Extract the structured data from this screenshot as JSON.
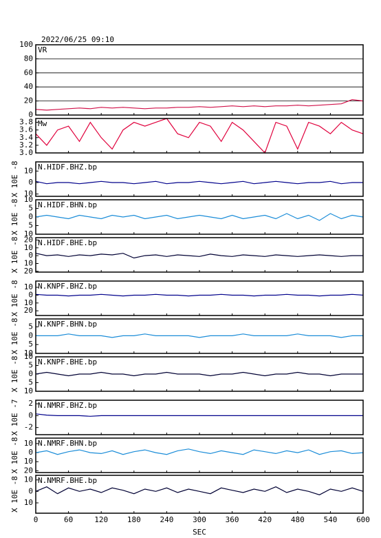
{
  "title": "2022/06/25 09:10",
  "xlabel": "SEC",
  "xlim": [
    0,
    600
  ],
  "xticks": [
    0,
    60,
    120,
    180,
    240,
    300,
    360,
    420,
    480,
    540,
    600
  ],
  "chart_data": [
    {
      "type": "line",
      "title": "VR",
      "color": "#d01048",
      "grid": true,
      "ylim": [
        0,
        100
      ],
      "yticks": [
        0,
        20,
        40,
        60,
        80,
        100
      ],
      "x": [
        0,
        20,
        40,
        60,
        80,
        100,
        120,
        140,
        160,
        180,
        200,
        220,
        240,
        260,
        280,
        300,
        320,
        340,
        360,
        380,
        400,
        420,
        440,
        460,
        480,
        500,
        520,
        540,
        560,
        580,
        600
      ],
      "values": [
        8,
        7,
        8,
        9,
        10,
        9,
        11,
        10,
        11,
        10,
        9,
        10,
        10,
        11,
        11,
        12,
        11,
        12,
        13,
        12,
        13,
        12,
        13,
        13,
        14,
        13,
        14,
        15,
        16,
        22,
        20
      ]
    },
    {
      "type": "line",
      "title": "Mw",
      "color": "#e0003c",
      "ylim": [
        3.0,
        3.9
      ],
      "yticks": [
        {
          "value": 3,
          "label": "3.0"
        },
        3.2,
        3.4,
        3.6,
        3.8
      ],
      "x": [
        0,
        20,
        40,
        60,
        80,
        100,
        120,
        140,
        160,
        180,
        200,
        220,
        240,
        260,
        280,
        300,
        320,
        340,
        360,
        380,
        400,
        420,
        440,
        460,
        480,
        500,
        520,
        540,
        560,
        580,
        600
      ],
      "values": [
        3.5,
        3.2,
        3.6,
        3.7,
        3.3,
        3.8,
        3.4,
        3.1,
        3.6,
        3.8,
        3.7,
        3.8,
        3.9,
        3.5,
        3.4,
        3.8,
        3.7,
        3.3,
        3.8,
        3.6,
        3.3,
        3.0,
        3.8,
        3.7,
        3.1,
        3.8,
        3.7,
        3.5,
        3.8,
        3.6,
        3.5
      ]
    },
    {
      "type": "line",
      "title": "N.HIDF.BHZ.bp",
      "ylabel": "X 10E -8",
      "color": "#00008b",
      "ylim": [
        -12,
        18
      ],
      "yticks": [
        10,
        0,
        {
          "value": -10,
          "label": "10"
        }
      ],
      "x": [
        0,
        20,
        40,
        60,
        80,
        100,
        120,
        140,
        160,
        180,
        200,
        220,
        240,
        260,
        280,
        300,
        320,
        340,
        360,
        380,
        400,
        420,
        440,
        460,
        480,
        500,
        520,
        540,
        560,
        580,
        600
      ],
      "values": [
        1,
        -1,
        0,
        0,
        -1,
        0,
        1,
        0,
        0,
        -1,
        0,
        1,
        -1,
        0,
        0,
        1,
        0,
        -1,
        0,
        1,
        -1,
        0,
        1,
        0,
        -1,
        0,
        0,
        1,
        -1,
        0,
        0
      ]
    },
    {
      "type": "line",
      "title": "N.HIDF.BHN.bp",
      "ylabel": "X 10E -8",
      "color": "#1a8cd8",
      "ylim": [
        -10,
        10
      ],
      "yticks": [
        10,
        5,
        0,
        {
          "value": -5,
          "label": "5"
        },
        {
          "value": -10,
          "label": "10"
        }
      ],
      "x": [
        0,
        20,
        40,
        60,
        80,
        100,
        120,
        140,
        160,
        180,
        200,
        220,
        240,
        260,
        280,
        300,
        320,
        340,
        360,
        380,
        400,
        420,
        440,
        460,
        480,
        500,
        520,
        540,
        560,
        580,
        600
      ],
      "values": [
        0,
        1,
        0,
        -1,
        1,
        0,
        -1,
        1,
        0,
        1,
        -1,
        0,
        1,
        -1,
        0,
        1,
        0,
        -1,
        1,
        -1,
        0,
        1,
        -1,
        2,
        -1,
        1,
        -2,
        2,
        -1,
        1,
        0
      ]
    },
    {
      "type": "line",
      "title": "N.HIDF.BHE.bp",
      "ylabel": "X 10E -8",
      "color": "#000033",
      "ylim": [
        -21,
        23
      ],
      "yticks": [
        20,
        10,
        0,
        {
          "value": -10,
          "label": "10"
        },
        {
          "value": -20,
          "label": "20"
        }
      ],
      "x": [
        0,
        20,
        40,
        60,
        80,
        100,
        120,
        140,
        160,
        180,
        200,
        220,
        240,
        260,
        280,
        300,
        320,
        340,
        360,
        380,
        400,
        420,
        440,
        460,
        480,
        500,
        520,
        540,
        560,
        580,
        600
      ],
      "values": [
        3,
        0,
        1,
        -1,
        1,
        0,
        2,
        1,
        3,
        -3,
        0,
        1,
        -1,
        1,
        0,
        -1,
        2,
        0,
        -1,
        1,
        0,
        -1,
        1,
        0,
        -1,
        0,
        1,
        0,
        -1,
        0,
        0
      ]
    },
    {
      "type": "line",
      "title": "N.KNPF.BHZ.bp",
      "ylabel": "X 10E -8",
      "color": "#00008b",
      "ylim": [
        -26,
        18
      ],
      "yticks": [
        10,
        0,
        {
          "value": -10,
          "label": "10"
        },
        {
          "value": -20,
          "label": "20"
        }
      ],
      "x": [
        0,
        20,
        40,
        60,
        80,
        100,
        120,
        140,
        160,
        180,
        200,
        220,
        240,
        260,
        280,
        300,
        320,
        340,
        360,
        380,
        400,
        420,
        440,
        460,
        480,
        500,
        520,
        540,
        560,
        580,
        600
      ],
      "values": [
        1,
        0,
        0,
        -1,
        0,
        0,
        1,
        0,
        -1,
        0,
        0,
        1,
        0,
        0,
        -1,
        0,
        0,
        1,
        0,
        0,
        -1,
        0,
        0,
        1,
        0,
        0,
        -1,
        0,
        0,
        1,
        0
      ]
    },
    {
      "type": "line",
      "title": "N.KNPF.BHN.bp",
      "ylabel": "X 10E -8",
      "color": "#1a8cd8",
      "ylim": [
        -10,
        9.5
      ],
      "yticks": [
        5,
        0,
        {
          "value": -5,
          "label": "5"
        },
        {
          "value": -10,
          "label": "10"
        }
      ],
      "x": [
        0,
        20,
        40,
        60,
        80,
        100,
        120,
        140,
        160,
        180,
        200,
        220,
        240,
        260,
        280,
        300,
        320,
        340,
        360,
        380,
        400,
        420,
        440,
        460,
        480,
        500,
        520,
        540,
        560,
        580,
        600
      ],
      "values": [
        0,
        0,
        0,
        1,
        0,
        0,
        0,
        -1,
        0,
        0,
        1,
        0,
        0,
        0,
        0,
        -1,
        0,
        0,
        0,
        1,
        0,
        0,
        0,
        0,
        1,
        0,
        0,
        0,
        -1,
        0,
        0
      ]
    },
    {
      "type": "line",
      "title": "N.KNPF.BHE.bp",
      "ylabel": "X 10E -8",
      "color": "#000033",
      "ylim": [
        -10,
        10
      ],
      "yticks": [
        10,
        5,
        0,
        {
          "value": -5,
          "label": "5"
        },
        {
          "value": -10,
          "label": "10"
        }
      ],
      "x": [
        0,
        20,
        40,
        60,
        80,
        100,
        120,
        140,
        160,
        180,
        200,
        220,
        240,
        260,
        280,
        300,
        320,
        340,
        360,
        380,
        400,
        420,
        440,
        460,
        480,
        500,
        520,
        540,
        560,
        580,
        600
      ],
      "values": [
        0,
        1,
        0,
        -1,
        0,
        0,
        1,
        0,
        0,
        -1,
        0,
        0,
        1,
        0,
        0,
        0,
        -1,
        0,
        0,
        1,
        0,
        -1,
        0,
        0,
        1,
        0,
        0,
        -1,
        0,
        0,
        0
      ]
    },
    {
      "type": "line",
      "title": "N.NMRF.BHZ.bp",
      "ylabel": "X 10E -7",
      "color": "#00008b",
      "ylim": [
        -3.2,
        2.6
      ],
      "yticks": [
        2,
        0,
        -2
      ],
      "x": [
        0,
        20,
        40,
        60,
        80,
        100,
        120,
        140,
        160,
        180,
        200,
        220,
        240,
        260,
        280,
        300,
        320,
        340,
        360,
        380,
        400,
        420,
        440,
        460,
        480,
        500,
        520,
        540,
        560,
        580,
        600
      ],
      "values": [
        0.3,
        0.1,
        0,
        0,
        0,
        -0.1,
        0,
        0,
        0,
        0,
        0,
        0,
        0,
        0,
        0,
        0,
        0,
        0,
        0,
        0,
        0,
        0,
        0,
        0,
        0,
        0,
        0,
        0,
        0,
        0,
        0
      ]
    },
    {
      "type": "line",
      "title": "N.NMRF.BHN.bp",
      "ylabel": "X 10E -8",
      "color": "#1a8cd8",
      "ylim": [
        -22,
        16
      ],
      "yticks": [
        10,
        0,
        {
          "value": -10,
          "label": "10"
        },
        {
          "value": -20,
          "label": "20"
        }
      ],
      "x": [
        0,
        20,
        40,
        60,
        80,
        100,
        120,
        140,
        160,
        180,
        200,
        220,
        240,
        260,
        280,
        300,
        320,
        340,
        360,
        380,
        400,
        420,
        440,
        460,
        480,
        500,
        520,
        540,
        560,
        580,
        600
      ],
      "values": [
        0,
        2,
        -2,
        1,
        3,
        0,
        -1,
        2,
        -2,
        1,
        3,
        0,
        -2,
        2,
        4,
        1,
        -1,
        2,
        0,
        -2,
        3,
        1,
        -1,
        2,
        0,
        3,
        -2,
        1,
        2,
        -1,
        0
      ]
    },
    {
      "type": "line",
      "title": "N.NMRF.BHE.bp",
      "ylabel": "X 10E -8",
      "color": "#000033",
      "ylim": [
        -19,
        14
      ],
      "yticks": [
        10,
        0,
        {
          "value": -10,
          "label": "10"
        }
      ],
      "x": [
        0,
        20,
        40,
        60,
        80,
        100,
        120,
        140,
        160,
        180,
        200,
        220,
        240,
        260,
        280,
        300,
        320,
        340,
        360,
        380,
        400,
        420,
        440,
        460,
        480,
        500,
        520,
        540,
        560,
        580,
        600
      ],
      "values": [
        0,
        4,
        -2,
        3,
        0,
        2,
        -1,
        3,
        1,
        -2,
        2,
        0,
        3,
        -1,
        2,
        0,
        -2,
        3,
        1,
        -1,
        2,
        0,
        4,
        -1,
        2,
        0,
        -3,
        2,
        0,
        3,
        0
      ]
    }
  ]
}
